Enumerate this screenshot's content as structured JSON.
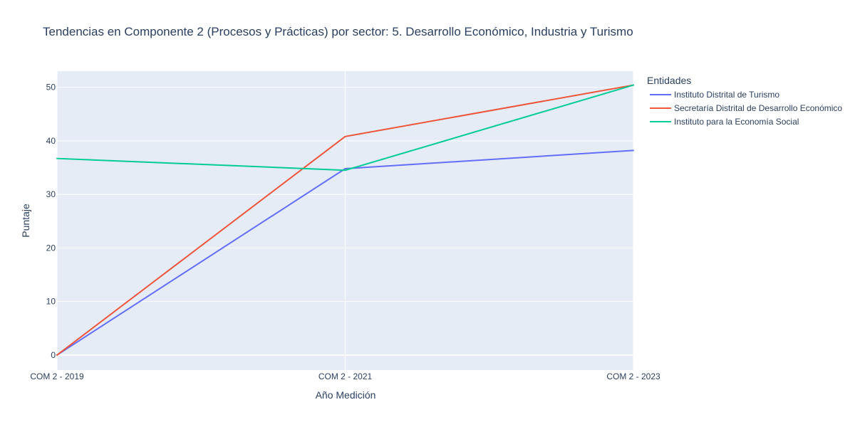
{
  "chart_data": {
    "type": "line",
    "title": "Tendencias en Componente 2 (Procesos y Prácticas) por sector: 5. Desarrollo Económico, Industria y Turismo",
    "xlabel": "Año Medición",
    "ylabel": "Puntaje",
    "categories": [
      "COM 2 - 2019",
      "COM 2 - 2021",
      "COM 2 - 2023"
    ],
    "ylim": [
      -2.8,
      53
    ],
    "yticks": [
      0,
      10,
      20,
      30,
      40,
      50
    ],
    "grid": true,
    "legend": {
      "title": "Entidades",
      "placement": "right"
    },
    "series": [
      {
        "name": "Instituto Distrital de Turismo",
        "color": "#636efa",
        "values": [
          0,
          34.8,
          38.2
        ]
      },
      {
        "name": "Secretaría Distrital de Desarrollo Económico",
        "color": "#ef553b",
        "values": [
          0,
          40.8,
          50.4
        ]
      },
      {
        "name": "Instituto para la Economía Social",
        "color": "#00cc96",
        "values": [
          36.7,
          34.5,
          50.4
        ]
      }
    ],
    "plot_bgcolor": "#e5ecf6",
    "gridcolor": "#ffffff"
  }
}
